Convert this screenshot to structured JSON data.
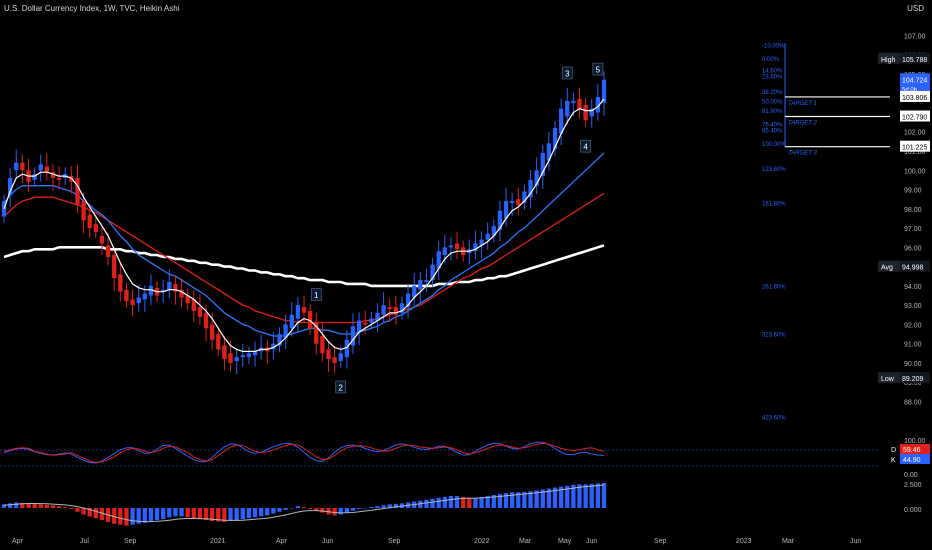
{
  "header": {
    "title": "U.S. Dollar Currency Index, 1W, TVC, Heikin Ashi",
    "currency": "USD"
  },
  "colors": {
    "bg": "#000000",
    "up": "#2962ff",
    "down": "#e0201b",
    "ema_fast": "#ffffff",
    "ema_mid": "#2979ff",
    "ema_slow": "#e0201b",
    "ema_long": "#ffffff",
    "fib": "#2962ff",
    "grid": "#131722"
  },
  "chart_data": {
    "type": "candlestick",
    "title": "U.S. Dollar Currency Index, 1W, TVC, Heikin Ashi",
    "ylim": [
      86.0,
      107.8
    ],
    "y_ticks": [
      88.0,
      89.0,
      90.0,
      91.0,
      92.0,
      93.0,
      94.0,
      95.0,
      96.0,
      97.0,
      98.0,
      99.0,
      100.0,
      101.0,
      102.0,
      103.0,
      104.0,
      105.0,
      106.0,
      107.0
    ],
    "x_labels": [
      "Apr",
      "Jul",
      "Sep",
      "2021",
      "Apr",
      "Jun",
      "Sep",
      "2022",
      "Mar",
      "May",
      "Jun",
      "Sep",
      "2023",
      "Mar",
      "Jun"
    ],
    "series_close": [
      98.4,
      99.6,
      100.4,
      100.0,
      99.4,
      99.8,
      100.3,
      99.9,
      99.6,
      99.5,
      99.8,
      99.4,
      98.2,
      97.4,
      97.0,
      96.8,
      96.2,
      95.5,
      94.4,
      93.7,
      93.2,
      93.0,
      93.4,
      93.6,
      94.0,
      93.5,
      93.8,
      94.2,
      93.7,
      93.4,
      93.1,
      92.7,
      92.4,
      91.8,
      91.2,
      90.7,
      90.2,
      90.0,
      90.3,
      90.4,
      90.5,
      90.6,
      90.8,
      90.6,
      91.0,
      91.5,
      92.0,
      92.5,
      93.0,
      92.6,
      91.8,
      91.0,
      90.5,
      90.2,
      90.0,
      90.5,
      91.2,
      91.9,
      92.2,
      92.0,
      92.3,
      92.6,
      93.0,
      92.8,
      92.5,
      93.1,
      93.6,
      94.0,
      94.3,
      94.3,
      95.1,
      95.8,
      96.0,
      96.1,
      95.9,
      95.6,
      95.9,
      96.2,
      96.4,
      96.7,
      97.1,
      97.9,
      98.4,
      98.4,
      98.2,
      98.9,
      99.5,
      100.0,
      100.9,
      101.4,
      102.2,
      103.2,
      103.6,
      103.6,
      103.2,
      102.6,
      103.2,
      103.8,
      104.7
    ],
    "series_open": [
      97.6,
      98.7,
      100.0,
      100.4,
      100.0,
      99.5,
      100.0,
      100.2,
      99.9,
      99.6,
      99.6,
      99.7,
      99.6,
      98.4,
      97.7,
      97.2,
      96.6,
      96.1,
      95.6,
      94.6,
      93.8,
      93.3,
      93.1,
      93.3,
      93.5,
      93.9,
      93.7,
      93.8,
      94.1,
      93.8,
      93.5,
      93.3,
      92.9,
      92.6,
      92.0,
      91.5,
      90.9,
      90.5,
      90.1,
      90.3,
      90.3,
      90.4,
      90.6,
      90.8,
      90.7,
      90.9,
      91.3,
      91.8,
      92.3,
      92.9,
      92.7,
      92.1,
      91.4,
      90.7,
      90.3,
      90.1,
      90.3,
      90.9,
      91.6,
      92.1,
      92.1,
      92.2,
      92.5,
      92.9,
      92.9,
      92.6,
      92.9,
      93.4,
      93.8,
      94.2,
      94.3,
      94.9,
      95.6,
      96.0,
      96.2,
      96.0,
      95.7,
      95.8,
      96.1,
      96.4,
      96.6,
      96.9,
      97.5,
      98.3,
      98.5,
      98.3,
      98.6,
      99.2,
      99.7,
      100.5,
      101.1,
      101.9,
      102.8,
      103.5,
      103.7,
      103.4,
      102.8,
      103.0,
      103.5
    ],
    "ema_fast": [
      98.0,
      98.9,
      99.6,
      99.8,
      99.7,
      99.7,
      99.9,
      99.9,
      99.8,
      99.7,
      99.7,
      99.6,
      99.2,
      98.6,
      98.1,
      97.6,
      97.1,
      96.6,
      95.9,
      95.2,
      94.6,
      94.1,
      93.9,
      93.8,
      93.8,
      93.7,
      93.7,
      93.8,
      93.8,
      93.7,
      93.5,
      93.3,
      93.0,
      92.7,
      92.3,
      91.8,
      91.3,
      90.9,
      90.7,
      90.6,
      90.6,
      90.6,
      90.7,
      90.7,
      90.8,
      91.0,
      91.3,
      91.7,
      92.1,
      92.3,
      92.2,
      91.9,
      91.5,
      91.1,
      90.8,
      90.7,
      90.8,
      91.2,
      91.6,
      91.8,
      92.0,
      92.2,
      92.4,
      92.6,
      92.6,
      92.7,
      93.0,
      93.4,
      93.7,
      94.0,
      94.4,
      94.9,
      95.4,
      95.7,
      95.8,
      95.8,
      95.8,
      95.9,
      96.1,
      96.3,
      96.6,
      97.0,
      97.5,
      97.9,
      98.1,
      98.4,
      98.8,
      99.3,
      99.9,
      100.5,
      101.2,
      101.9,
      102.5,
      103.0,
      103.2,
      103.1,
      103.1,
      103.3,
      103.7
    ],
    "ema_mid": [
      98.3,
      98.7,
      99.0,
      99.2,
      99.2,
      99.2,
      99.2,
      99.2,
      99.2,
      99.1,
      99.0,
      98.9,
      98.7,
      98.4,
      98.2,
      97.9,
      97.7,
      97.4,
      97.0,
      96.6,
      96.3,
      95.9,
      95.6,
      95.4,
      95.2,
      95.0,
      94.8,
      94.6,
      94.5,
      94.3,
      94.1,
      93.9,
      93.7,
      93.5,
      93.2,
      92.9,
      92.6,
      92.4,
      92.2,
      92.0,
      91.9,
      91.7,
      91.6,
      91.5,
      91.4,
      91.4,
      91.4,
      91.5,
      91.6,
      91.7,
      91.8,
      91.8,
      91.7,
      91.7,
      91.6,
      91.5,
      91.5,
      91.5,
      91.6,
      91.7,
      91.8,
      91.9,
      92.1,
      92.2,
      92.4,
      92.5,
      92.7,
      92.9,
      93.1,
      93.3,
      93.5,
      93.8,
      94.0,
      94.3,
      94.5,
      94.7,
      94.9,
      95.1,
      95.3,
      95.5,
      95.7,
      96.0,
      96.2,
      96.5,
      96.8,
      97.0,
      97.3,
      97.6,
      97.9,
      98.2,
      98.5,
      98.8,
      99.1,
      99.4,
      99.7,
      100.0,
      100.3,
      100.6,
      100.9
    ],
    "ema_slow": [
      97.6,
      97.9,
      98.2,
      98.4,
      98.5,
      98.6,
      98.6,
      98.6,
      98.6,
      98.5,
      98.4,
      98.3,
      98.2,
      98.1,
      97.9,
      97.8,
      97.6,
      97.4,
      97.2,
      97.0,
      96.8,
      96.6,
      96.4,
      96.2,
      96.0,
      95.8,
      95.6,
      95.4,
      95.2,
      95.0,
      94.8,
      94.6,
      94.4,
      94.2,
      94.0,
      93.8,
      93.6,
      93.4,
      93.2,
      93.0,
      92.9,
      92.7,
      92.6,
      92.5,
      92.4,
      92.3,
      92.2,
      92.2,
      92.1,
      92.1,
      92.1,
      92.1,
      92.1,
      92.1,
      92.1,
      92.1,
      92.1,
      92.1,
      92.1,
      92.2,
      92.2,
      92.3,
      92.4,
      92.5,
      92.6,
      92.7,
      92.8,
      92.9,
      93.0,
      93.2,
      93.4,
      93.6,
      93.8,
      94.0,
      94.2,
      94.4,
      94.5,
      94.7,
      94.9,
      95.0,
      95.2,
      95.4,
      95.6,
      95.8,
      96.0,
      96.2,
      96.4,
      96.6,
      96.8,
      97.0,
      97.2,
      97.4,
      97.6,
      97.8,
      98.0,
      98.2,
      98.4,
      98.6,
      98.8
    ],
    "ema_long": [
      95.5,
      95.6,
      95.7,
      95.8,
      95.8,
      95.9,
      95.9,
      95.9,
      95.9,
      96.0,
      96.0,
      96.0,
      96.0,
      96.0,
      96.0,
      96.0,
      96.0,
      95.9,
      95.9,
      95.9,
      95.8,
      95.8,
      95.7,
      95.7,
      95.6,
      95.6,
      95.5,
      95.5,
      95.4,
      95.4,
      95.3,
      95.3,
      95.2,
      95.2,
      95.1,
      95.1,
      95.0,
      95.0,
      94.9,
      94.9,
      94.8,
      94.8,
      94.7,
      94.7,
      94.6,
      94.6,
      94.5,
      94.5,
      94.4,
      94.4,
      94.3,
      94.3,
      94.3,
      94.2,
      94.2,
      94.2,
      94.1,
      94.1,
      94.1,
      94.1,
      94.0,
      94.0,
      94.0,
      94.0,
      94.0,
      94.0,
      94.0,
      94.0,
      94.0,
      94.0,
      94.0,
      94.1,
      94.1,
      94.1,
      94.2,
      94.2,
      94.2,
      94.3,
      94.3,
      94.4,
      94.4,
      94.5,
      94.5,
      94.6,
      94.7,
      94.8,
      94.9,
      95.0,
      95.1,
      95.2,
      95.3,
      95.4,
      95.5,
      95.6,
      95.7,
      95.8,
      95.9,
      96.0,
      96.1
    ],
    "stoch_d": [
      60,
      65,
      70,
      72,
      70,
      60,
      55,
      50,
      45,
      48,
      50,
      55,
      45,
      35,
      25,
      20,
      22,
      30,
      40,
      55,
      65,
      70,
      68,
      60,
      55,
      60,
      70,
      78,
      75,
      65,
      55,
      40,
      30,
      25,
      30,
      45,
      60,
      75,
      82,
      80,
      70,
      60,
      55,
      58,
      65,
      72,
      80,
      85,
      82,
      70,
      55,
      40,
      30,
      32,
      45,
      60,
      72,
      78,
      80,
      78,
      72,
      65,
      60,
      62,
      70,
      78,
      82,
      80,
      75,
      72,
      70,
      72,
      75,
      72,
      65,
      55,
      50,
      55,
      62,
      70,
      78,
      82,
      80,
      75,
      70,
      72,
      78,
      85,
      88,
      85,
      78,
      70,
      65,
      62,
      65,
      70,
      72,
      65,
      59.46
    ],
    "stoch_k": [
      55,
      62,
      68,
      70,
      66,
      58,
      52,
      48,
      46,
      50,
      54,
      50,
      38,
      28,
      20,
      18,
      25,
      38,
      52,
      65,
      72,
      72,
      62,
      52,
      54,
      68,
      80,
      82,
      70,
      56,
      42,
      30,
      22,
      22,
      38,
      58,
      76,
      86,
      84,
      72,
      58,
      52,
      56,
      66,
      76,
      84,
      88,
      86,
      74,
      56,
      38,
      26,
      24,
      36,
      56,
      72,
      80,
      82,
      78,
      70,
      62,
      58,
      62,
      72,
      82,
      86,
      82,
      74,
      68,
      66,
      70,
      78,
      78,
      68,
      56,
      46,
      48,
      60,
      72,
      82,
      88,
      86,
      78,
      70,
      68,
      76,
      86,
      92,
      92,
      84,
      70,
      56,
      48,
      48,
      54,
      56,
      50,
      46,
      44.9
    ],
    "macd_hist": [
      0.4,
      0.5,
      0.6,
      0.55,
      0.5,
      0.45,
      0.4,
      0.35,
      0.3,
      0.2,
      0.1,
      -0.1,
      -0.4,
      -0.7,
      -0.9,
      -1.1,
      -1.3,
      -1.5,
      -1.7,
      -1.8,
      -1.9,
      -1.8,
      -1.7,
      -1.6,
      -1.4,
      -1.3,
      -1.2,
      -1.0,
      -0.9,
      -0.9,
      -1.0,
      -1.1,
      -1.2,
      -1.3,
      -1.4,
      -1.45,
      -1.5,
      -1.4,
      -1.3,
      -1.2,
      -1.1,
      -1.0,
      -0.9,
      -0.8,
      -0.6,
      -0.4,
      -0.2,
      0.0,
      0.2,
      0.1,
      -0.1,
      -0.3,
      -0.5,
      -0.7,
      -0.8,
      -0.7,
      -0.5,
      -0.3,
      -0.1,
      0.0,
      0.1,
      0.2,
      0.3,
      0.4,
      0.45,
      0.5,
      0.6,
      0.7,
      0.8,
      0.9,
      1.0,
      1.1,
      1.2,
      1.3,
      1.3,
      1.2,
      1.1,
      1.1,
      1.2,
      1.3,
      1.4,
      1.5,
      1.6,
      1.7,
      1.7,
      1.75,
      1.8,
      1.9,
      2.0,
      2.1,
      2.2,
      2.3,
      2.4,
      2.5,
      2.55,
      2.55,
      2.6,
      2.65,
      2.7
    ],
    "macd_signal": [
      0.3,
      0.35,
      0.4,
      0.45,
      0.48,
      0.48,
      0.47,
      0.45,
      0.42,
      0.38,
      0.33,
      0.26,
      0.15,
      0.0,
      -0.17,
      -0.36,
      -0.55,
      -0.74,
      -0.93,
      -1.1,
      -1.26,
      -1.37,
      -1.43,
      -1.47,
      -1.46,
      -1.43,
      -1.39,
      -1.31,
      -1.23,
      -1.16,
      -1.13,
      -1.12,
      -1.14,
      -1.17,
      -1.22,
      -1.27,
      -1.32,
      -1.34,
      -1.33,
      -1.31,
      -1.27,
      -1.22,
      -1.16,
      -1.09,
      -0.99,
      -0.87,
      -0.74,
      -0.59,
      -0.43,
      -0.32,
      -0.28,
      -0.28,
      -0.33,
      -0.41,
      -0.49,
      -0.53,
      -0.52,
      -0.48,
      -0.4,
      -0.32,
      -0.24,
      -0.15,
      -0.06,
      0.03,
      0.12,
      0.2,
      0.29,
      0.37,
      0.46,
      0.55,
      0.64,
      0.73,
      0.82,
      0.91,
      0.99,
      1.03,
      1.05,
      1.06,
      1.09,
      1.13,
      1.18,
      1.24,
      1.31,
      1.38,
      1.45,
      1.51,
      1.57,
      1.64,
      1.71,
      1.79,
      1.87,
      1.96,
      2.05,
      2.14,
      2.23,
      2.3,
      2.36,
      2.42,
      2.48
    ],
    "waves": [
      {
        "label": "1",
        "idx": 51
      },
      {
        "label": "2",
        "idx": 55
      },
      {
        "label": "3",
        "idx": 92
      },
      {
        "label": "4",
        "idx": 95
      },
      {
        "label": "5",
        "idx": 97
      }
    ],
    "fib_levels": [
      {
        "pct": "-10.00%",
        "value": 106.5
      },
      {
        "pct": "0.00%",
        "value": 105.8
      },
      {
        "pct": "14.60%",
        "value": 105.2
      },
      {
        "pct": "23.60%",
        "value": 104.9
      },
      {
        "pct": "38.20%",
        "value": 104.1
      },
      {
        "pct": "50.00%",
        "value": 103.6
      },
      {
        "pct": "61.80%",
        "value": 103.1
      },
      {
        "pct": "76.40%",
        "value": 102.4
      },
      {
        "pct": "85.40%",
        "value": 102.1
      },
      {
        "pct": "100.00%",
        "value": 101.4
      },
      {
        "pct": "123.60%",
        "value": 100.1
      },
      {
        "pct": "161.80%",
        "value": 98.3
      },
      {
        "pct": "261.80%",
        "value": 94.0
      },
      {
        "pct": "323.60%",
        "value": 91.5
      },
      {
        "pct": "423.60%",
        "value": 87.2
      }
    ],
    "targets": [
      {
        "label": "TARGET 1",
        "value": 103.806
      },
      {
        "label": "TARGET 2",
        "value": 102.79
      },
      {
        "label": "TARGET 3",
        "value": 101.225
      }
    ],
    "axis_badges": [
      {
        "label": "High",
        "value": "105.788",
        "y": 105.788
      },
      {
        "label": "",
        "value": "104.724",
        "sub": "5d 0h",
        "y": 104.724,
        "accent": true
      },
      {
        "label": "",
        "value": "103.806",
        "y": 103.806,
        "white": true
      },
      {
        "label": "",
        "value": "102.790",
        "y": 102.79,
        "white": true
      },
      {
        "label": "",
        "value": "101.225",
        "y": 101.225,
        "white": true
      },
      {
        "label": "Avg",
        "value": "94.998",
        "y": 94.998
      },
      {
        "label": "Low",
        "value": "89.209",
        "y": 89.209
      }
    ],
    "stoch_axis": [
      "100.00",
      "0.00"
    ],
    "stoch_badges": [
      {
        "label": "D",
        "value": "59.46"
      },
      {
        "label": "K",
        "value": "44.90"
      }
    ],
    "macd_axis": [
      "2.500",
      "0.000"
    ]
  }
}
